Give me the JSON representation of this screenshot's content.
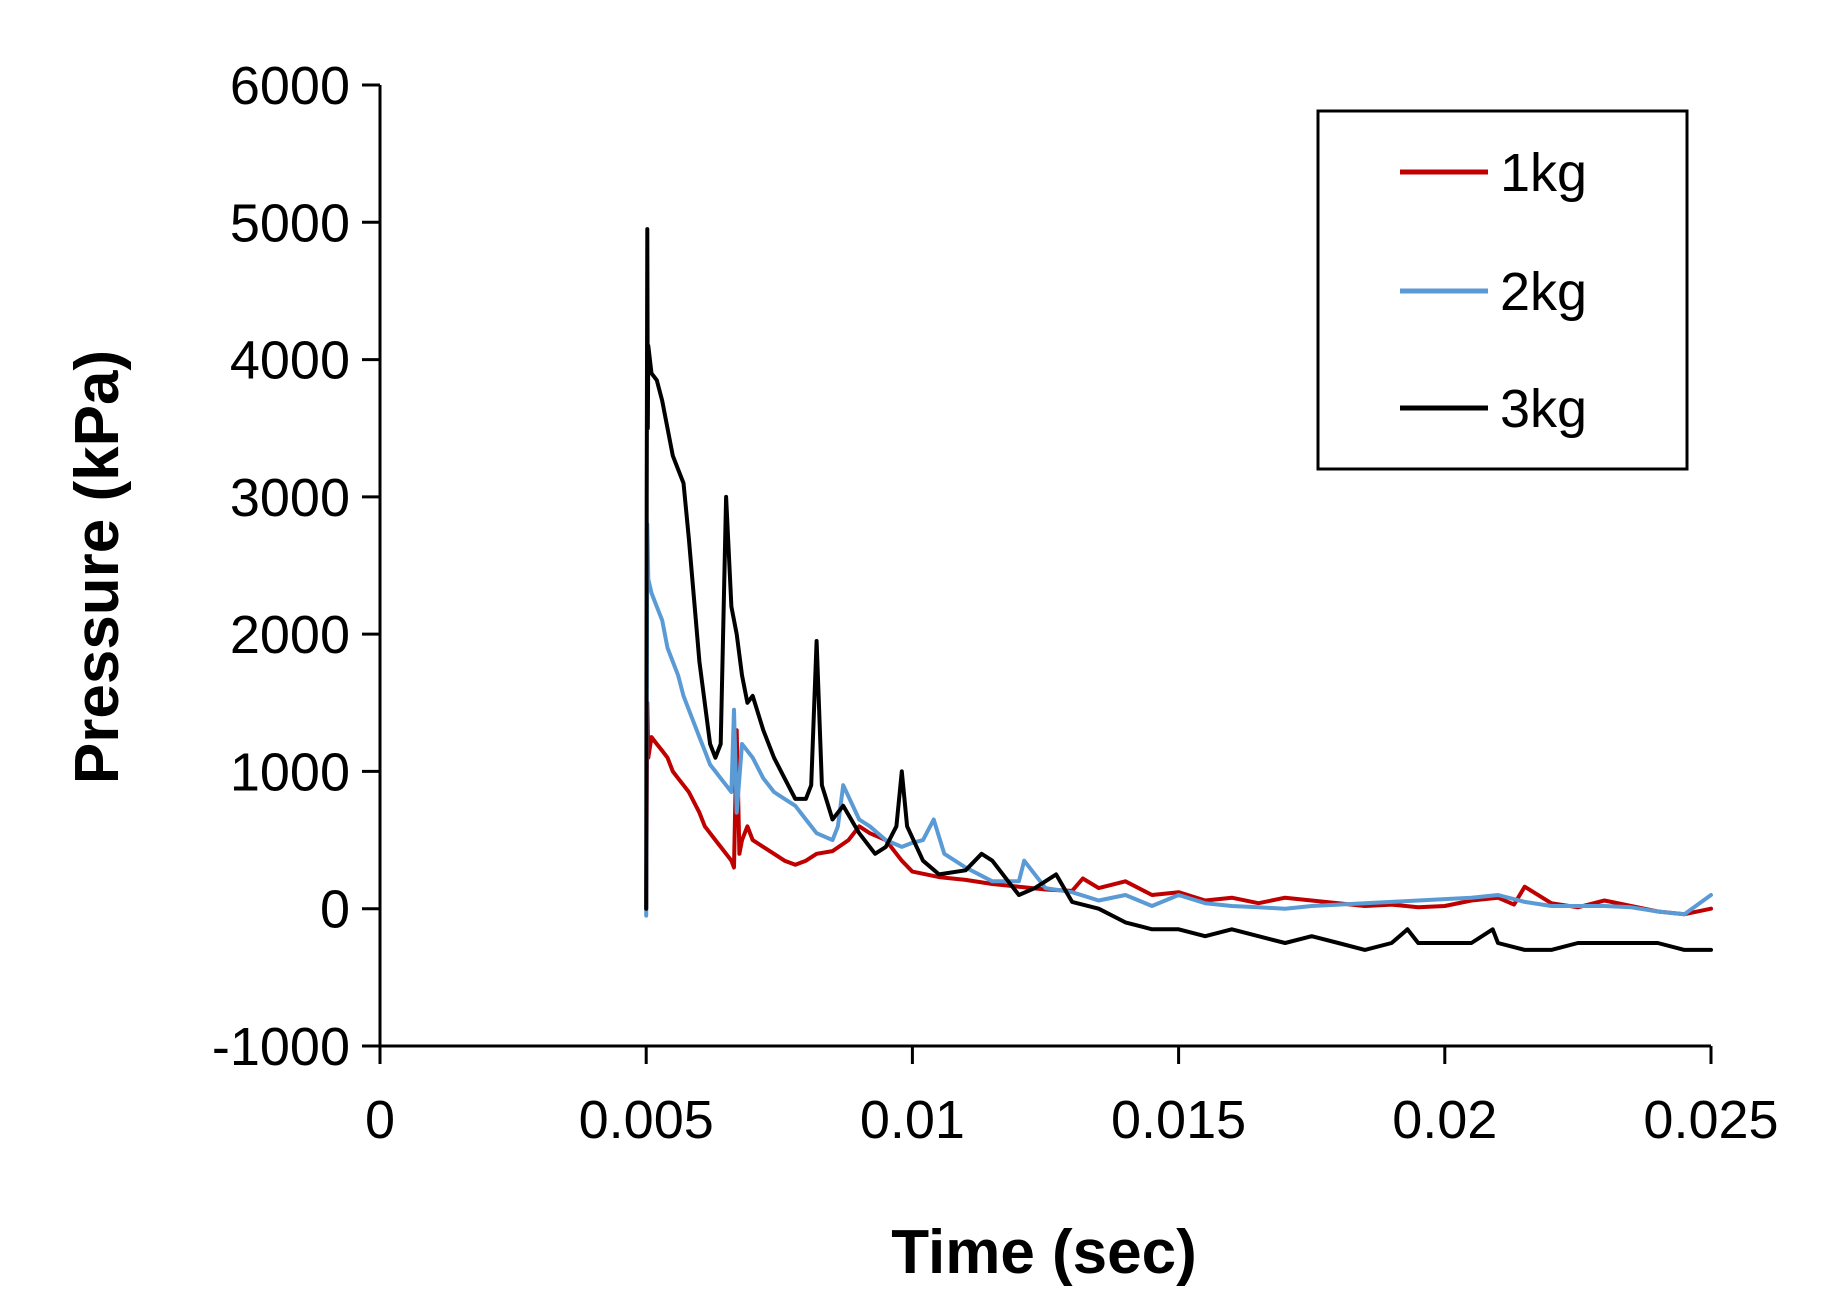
{
  "chart_data": {
    "type": "line",
    "title": "",
    "xlabel": "Time (sec)",
    "ylabel": "Pressure (kPa)",
    "xlim": [
      0,
      0.025
    ],
    "ylim": [
      -1000,
      6000
    ],
    "x_ticks": [
      0,
      0.005,
      0.01,
      0.015,
      0.02,
      0.025
    ],
    "x_tick_labels": [
      "0",
      "0.005",
      "0.01",
      "0.015",
      "0.02",
      "0.025"
    ],
    "y_ticks": [
      -1000,
      0,
      1000,
      2000,
      3000,
      4000,
      5000,
      6000
    ],
    "y_tick_labels": [
      "-1000",
      "0",
      "1000",
      "2000",
      "3000",
      "4000",
      "5000",
      "6000"
    ],
    "grid": false,
    "legend_position": "top-right",
    "series": [
      {
        "name": "1kg",
        "color": "#c00000",
        "x": [
          0.005,
          0.00502,
          0.00504,
          0.0051,
          0.0052,
          0.0053,
          0.0054,
          0.0055,
          0.0056,
          0.0057,
          0.0058,
          0.006,
          0.0061,
          0.0062,
          0.0063,
          0.0064,
          0.0065,
          0.0066,
          0.00665,
          0.0067,
          0.00675,
          0.0068,
          0.0069,
          0.007,
          0.0072,
          0.0074,
          0.0076,
          0.0078,
          0.008,
          0.0082,
          0.0085,
          0.0088,
          0.009,
          0.0092,
          0.0095,
          0.0098,
          0.01,
          0.0105,
          0.011,
          0.0115,
          0.012,
          0.0125,
          0.013,
          0.0132,
          0.0135,
          0.014,
          0.0145,
          0.015,
          0.0155,
          0.016,
          0.0165,
          0.017,
          0.0175,
          0.018,
          0.0185,
          0.019,
          0.0195,
          0.02,
          0.0205,
          0.021,
          0.0213,
          0.0215,
          0.022,
          0.0225,
          0.023,
          0.0235,
          0.024,
          0.0245,
          0.025
        ],
        "y": [
          0,
          1500,
          1100,
          1250,
          1200,
          1150,
          1100,
          1000,
          950,
          900,
          850,
          700,
          600,
          550,
          500,
          450,
          400,
          350,
          300,
          1300,
          400,
          500,
          600,
          500,
          450,
          400,
          350,
          320,
          350,
          400,
          420,
          500,
          600,
          550,
          500,
          350,
          270,
          230,
          210,
          180,
          160,
          140,
          130,
          220,
          150,
          200,
          100,
          120,
          60,
          80,
          40,
          80,
          60,
          40,
          20,
          30,
          10,
          20,
          60,
          80,
          30,
          160,
          40,
          10,
          60,
          20,
          -20,
          -40,
          0
        ]
      },
      {
        "name": "2kg",
        "color": "#5b9bd5",
        "x": [
          0.005,
          0.00502,
          0.00504,
          0.0051,
          0.0052,
          0.0053,
          0.0054,
          0.0055,
          0.0056,
          0.0057,
          0.0058,
          0.006,
          0.0061,
          0.0062,
          0.0063,
          0.0064,
          0.0065,
          0.0066,
          0.00665,
          0.0067,
          0.0068,
          0.007,
          0.0072,
          0.0074,
          0.0076,
          0.0078,
          0.008,
          0.0082,
          0.0085,
          0.0086,
          0.0087,
          0.009,
          0.0092,
          0.0095,
          0.0098,
          0.01,
          0.0102,
          0.0104,
          0.0106,
          0.011,
          0.0115,
          0.012,
          0.0121,
          0.0125,
          0.013,
          0.0135,
          0.014,
          0.0145,
          0.015,
          0.0155,
          0.016,
          0.0165,
          0.017,
          0.0175,
          0.018,
          0.0185,
          0.019,
          0.0195,
          0.02,
          0.0205,
          0.021,
          0.0215,
          0.022,
          0.0225,
          0.023,
          0.0235,
          0.024,
          0.0245,
          0.025
        ],
        "y": [
          -50,
          2800,
          2400,
          2300,
          2200,
          2100,
          1900,
          1800,
          1700,
          1550,
          1450,
          1250,
          1150,
          1050,
          1000,
          950,
          900,
          850,
          1450,
          700,
          1200,
          1100,
          950,
          850,
          800,
          750,
          650,
          550,
          500,
          600,
          900,
          650,
          600,
          500,
          450,
          480,
          500,
          650,
          400,
          300,
          200,
          200,
          350,
          150,
          120,
          60,
          100,
          20,
          100,
          40,
          20,
          10,
          0,
          20,
          30,
          40,
          50,
          60,
          70,
          80,
          100,
          50,
          20,
          20,
          20,
          10,
          -20,
          -40,
          100
        ]
      },
      {
        "name": "3kg",
        "color": "#000000",
        "x": [
          0.005,
          0.00501,
          0.00502,
          0.00503,
          0.00504,
          0.0051,
          0.0052,
          0.0053,
          0.0054,
          0.0055,
          0.0056,
          0.0057,
          0.0058,
          0.006,
          0.0062,
          0.0063,
          0.0064,
          0.0065,
          0.0066,
          0.0067,
          0.0068,
          0.0069,
          0.007,
          0.0072,
          0.0074,
          0.0076,
          0.0078,
          0.008,
          0.0081,
          0.0082,
          0.0083,
          0.0085,
          0.0087,
          0.009,
          0.0093,
          0.0095,
          0.0097,
          0.0098,
          0.0099,
          0.0102,
          0.0105,
          0.011,
          0.0113,
          0.0115,
          0.0118,
          0.012,
          0.0123,
          0.0127,
          0.013,
          0.0135,
          0.014,
          0.0145,
          0.015,
          0.0155,
          0.016,
          0.0165,
          0.017,
          0.0175,
          0.018,
          0.0185,
          0.019,
          0.0193,
          0.0195,
          0.02,
          0.0205,
          0.0209,
          0.021,
          0.0215,
          0.022,
          0.0225,
          0.023,
          0.0235,
          0.024,
          0.0245,
          0.025
        ],
        "y": [
          0,
          3000,
          4950,
          3500,
          4100,
          3900,
          3850,
          3700,
          3500,
          3300,
          3200,
          3100,
          2700,
          1800,
          1200,
          1100,
          1200,
          3000,
          2200,
          2000,
          1700,
          1500,
          1550,
          1300,
          1100,
          950,
          800,
          800,
          900,
          1950,
          900,
          650,
          750,
          550,
          400,
          450,
          600,
          1000,
          600,
          350,
          250,
          280,
          400,
          350,
          200,
          100,
          150,
          250,
          50,
          0,
          -100,
          -150,
          -150,
          -200,
          -150,
          -200,
          -250,
          -200,
          -250,
          -300,
          -250,
          -150,
          -250,
          -250,
          -250,
          -150,
          -250,
          -300,
          -300,
          -250,
          -250,
          -250,
          -250,
          -300,
          -300
        ]
      }
    ]
  }
}
